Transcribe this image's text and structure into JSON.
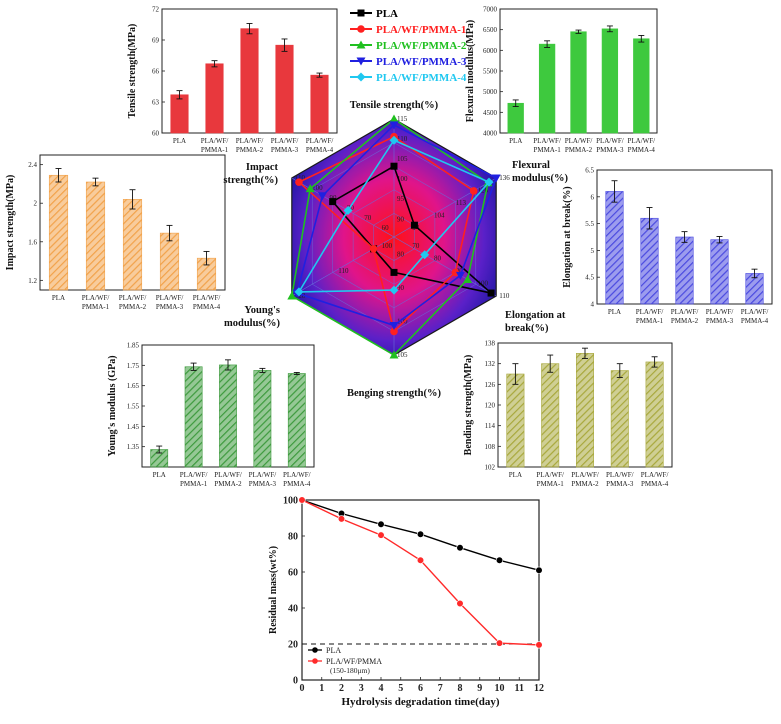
{
  "chart_data": [
    {
      "id": "tensile",
      "type": "bar",
      "categories": [
        "PLA",
        "PLA/WF/\nPMMA-1",
        "PLA/WF/\nPMMA-2",
        "PLA/WF/\nPMMA-3",
        "PLA/WF/\nPMMA-4"
      ],
      "values": [
        63.7,
        66.7,
        70.1,
        68.5,
        65.6
      ],
      "errors": [
        0.4,
        0.3,
        0.5,
        0.6,
        0.2
      ],
      "ylabel": "Tensile strength(MPa)",
      "ylim": [
        60,
        72
      ],
      "yticks": [
        60,
        63,
        66,
        69,
        72
      ],
      "color": "#e8383d"
    },
    {
      "id": "flexural",
      "type": "bar",
      "categories": [
        "PLA",
        "PLA/WF/\nPMMA-1",
        "PLA/WF/\nPMMA-2",
        "PLA/WF/\nPMMA-3",
        "PLA/WF/\nPMMA-4"
      ],
      "values": [
        4720,
        6150,
        6450,
        6520,
        6280
      ],
      "errors": [
        80,
        80,
        40,
        70,
        80
      ],
      "ylabel": "Flexural modulus(MPa)",
      "ylim": [
        4000,
        7000
      ],
      "yticks": [
        4000,
        4500,
        5000,
        5500,
        6000,
        6500,
        7000
      ],
      "color": "#3ec93e"
    },
    {
      "id": "impact",
      "type": "bar",
      "categories": [
        "PLA",
        "PLA/WF/\nPMMA-1",
        "PLA/WF/\nPMMA-2",
        "PLA/WF/\nPMMA-3",
        "PLA/WF/\nPMMA-4"
      ],
      "values": [
        2.29,
        2.22,
        2.04,
        1.69,
        1.43
      ],
      "errors": [
        0.07,
        0.04,
        0.1,
        0.08,
        0.07
      ],
      "ylabel": "Impact strength(MPa)",
      "ylim": [
        1.1,
        2.5
      ],
      "yticks": [
        1.2,
        1.6,
        2.0,
        2.4
      ],
      "color": "#f2a24a"
    },
    {
      "id": "elongation",
      "type": "bar",
      "categories": [
        "PLA",
        "PLA/WF/\nPMMA-1",
        "PLA/WF/\nPMMA-2",
        "PLA/WF/\nPMMA-3",
        "PLA/WF/\nPMMA-4"
      ],
      "values": [
        6.1,
        5.6,
        5.25,
        5.2,
        4.57
      ],
      "errors": [
        0.2,
        0.2,
        0.1,
        0.06,
        0.08
      ],
      "ylabel": "Elongation at break(%)",
      "ylim": [
        4.0,
        6.5
      ],
      "yticks": [
        4.0,
        4.5,
        5.0,
        5.5,
        6.0,
        6.5
      ],
      "color": "#4a4ae0"
    },
    {
      "id": "young",
      "type": "bar",
      "categories": [
        "PLA",
        "PLA/WF/\nPMMA-1",
        "PLA/WF/\nPMMA-2",
        "PLA/WF/\nPMMA-3",
        "PLA/WF/\nPMMA-4"
      ],
      "values": [
        1.336,
        1.743,
        1.752,
        1.725,
        1.71
      ],
      "errors": [
        0.017,
        0.018,
        0.025,
        0.01,
        0.005
      ],
      "ylabel": "Young's modulus (GPa)",
      "ylim": [
        1.25,
        1.85
      ],
      "yticks": [
        1.35,
        1.45,
        1.55,
        1.65,
        1.75,
        1.85
      ],
      "color": "#3d9a3d"
    },
    {
      "id": "bending",
      "type": "bar",
      "categories": [
        "PLA",
        "PLA/WF/\nPMMA-1",
        "PLA/WF/\nPMMA-2",
        "PLA/WF/\nPMMA-3",
        "PLA/WF/\nPMMA-4"
      ],
      "values": [
        129,
        132,
        135,
        130,
        132.5
      ],
      "errors": [
        3,
        2.5,
        1.5,
        2,
        1.5
      ],
      "ylabel": "Bending strength(MPa)",
      "ylim": [
        102,
        138
      ],
      "yticks": [
        102,
        108,
        114,
        120,
        126,
        132,
        138
      ],
      "color": "#a8a83c"
    },
    {
      "id": "radar",
      "type": "radar",
      "axes": [
        "Tensile strength(%)",
        "Flexural modulus(%)",
        "Elongation at break(%)",
        "Benging strength(%)",
        "Young's modulus(%)",
        "Impact strength(%)"
      ],
      "axis_ticks": [
        [
          "90",
          "95",
          "100",
          "105",
          "110",
          "115"
        ],
        [
          "94",
          "104",
          "113",
          "126",
          "136"
        ],
        [
          "70",
          "80",
          "90",
          "100",
          "110"
        ],
        [
          "80",
          "90",
          "100",
          "105"
        ],
        [
          "100",
          "110",
          "120"
        ],
        [
          "60",
          "70",
          "80",
          "90",
          "100",
          "110"
        ]
      ],
      "series": [
        {
          "name": "PLA",
          "color": "#000000",
          "marker": "square",
          "values": [
            0.6,
            0.2,
            0.95,
            0.3,
            0.2,
            0.6
          ]
        },
        {
          "name": "PLA/WF/PMMA-1",
          "color": "#ff2020",
          "marker": "circle",
          "values": [
            0.85,
            0.78,
            0.6,
            0.8,
            0.2,
            0.93
          ]
        },
        {
          "name": "PLA/WF/PMMA-2",
          "color": "#20c020",
          "marker": "triangle-up",
          "values": [
            1.0,
            0.92,
            0.72,
            1.0,
            1.0,
            0.82
          ]
        },
        {
          "name": "PLA/WF/PMMA-3",
          "color": "#2020e0",
          "marker": "triangle-down",
          "values": [
            0.95,
            1.0,
            0.65,
            0.75,
            0.95,
            0.7
          ]
        },
        {
          "name": "PLA/WF/PMMA-4",
          "color": "#20c8f0",
          "marker": "diamond",
          "values": [
            0.82,
            0.93,
            0.3,
            0.45,
            0.93,
            0.45
          ]
        }
      ]
    },
    {
      "id": "hydrolysis",
      "type": "line",
      "xlabel": "Hydrolysis degradation time(day)",
      "ylabel": "Residual mass(wt%)",
      "xlim": [
        0,
        12
      ],
      "ylim": [
        0,
        100
      ],
      "xticks": [
        0,
        1,
        2,
        3,
        4,
        5,
        6,
        7,
        8,
        9,
        10,
        11,
        12
      ],
      "yticks": [
        0,
        20,
        40,
        60,
        80,
        100
      ],
      "reference_line": 20,
      "legend_position": "bottom-left",
      "series": [
        {
          "name": "PLA",
          "color": "#000000",
          "x": [
            0,
            2,
            4,
            6,
            8,
            10,
            12
          ],
          "y": [
            100,
            92.5,
            86.5,
            81,
            73.5,
            66.5,
            61
          ]
        },
        {
          "name": "PLA/WF/PMMA",
          "note": "(150-180μm)",
          "color": "#ff2a2a",
          "x": [
            0,
            2,
            4,
            6,
            8,
            10,
            12
          ],
          "y": [
            100,
            89.5,
            80.5,
            66.5,
            42.5,
            20.5,
            19.5
          ]
        }
      ]
    }
  ],
  "radar_legend": [
    "PLA",
    "PLA/WF/PMMA-1",
    "PLA/WF/PMMA-2",
    "PLA/WF/PMMA-3",
    "PLA/WF/PMMA-4"
  ]
}
